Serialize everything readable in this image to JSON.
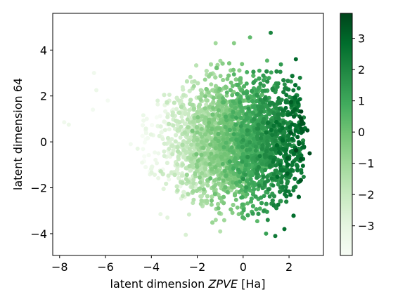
{
  "chart_data": {
    "type": "scatter",
    "title": "",
    "xlabel_prefix": "latent dimension ",
    "xlabel_var": "ZPVE",
    "xlabel_unit": " [Ha]",
    "ylabel": "latent dimension 64",
    "xlim": [
      -8.3,
      3.5
    ],
    "ylim": [
      -4.95,
      5.6
    ],
    "x_ticks": [
      {
        "value": -8,
        "label": "−8"
      },
      {
        "value": -6,
        "label": "−6"
      },
      {
        "value": -4,
        "label": "−4"
      },
      {
        "value": -2,
        "label": "−2"
      },
      {
        "value": 0,
        "label": "0"
      },
      {
        "value": 2,
        "label": "2"
      }
    ],
    "y_ticks": [
      {
        "value": -4,
        "label": "−4"
      },
      {
        "value": -2,
        "label": "−2"
      },
      {
        "value": 0,
        "label": "0"
      },
      {
        "value": 2,
        "label": "2"
      },
      {
        "value": 4,
        "label": "4"
      }
    ],
    "colorbar": {
      "colormap": "Greens",
      "range": [
        -3.95,
        3.8
      ],
      "ticks": [
        {
          "value": -3,
          "label": "−3"
        },
        {
          "value": -2,
          "label": "−2"
        },
        {
          "value": -1,
          "label": "−1"
        },
        {
          "value": 0,
          "label": "0"
        },
        {
          "value": 1,
          "label": "1"
        },
        {
          "value": 2,
          "label": "2"
        },
        {
          "value": 3,
          "label": "3"
        }
      ]
    },
    "grid": false,
    "legend": "none",
    "cloud": {
      "n_points": 6000,
      "x_center": -0.3,
      "x_spread": 1.7,
      "y_spread": 1.3,
      "right_edge_x": 2.7,
      "right_edge_y_halfwidth": 3.3,
      "left_tail_x": -4.4
    },
    "outliers": [
      {
        "x": -7.8,
        "y": 0.85,
        "c": -3.6
      },
      {
        "x": -7.6,
        "y": 0.75,
        "c": -3.4
      },
      {
        "x": -6.5,
        "y": 3.0,
        "c": -3.6
      },
      {
        "x": -6.4,
        "y": 2.25,
        "c": -3.4
      },
      {
        "x": -6.55,
        "y": 1.4,
        "c": -3.7
      },
      {
        "x": -5.9,
        "y": 1.8,
        "c": -3.8
      },
      {
        "x": -4.9,
        "y": -0.1,
        "c": -3.7
      },
      {
        "x": -4.6,
        "y": -0.3,
        "c": -3.2
      },
      {
        "x": -4.4,
        "y": -0.9,
        "c": -3.5
      },
      {
        "x": -4.2,
        "y": 1.0,
        "c": -3.6
      },
      {
        "x": -3.6,
        "y": -3.15,
        "c": -3.1
      },
      {
        "x": -3.3,
        "y": -3.3,
        "c": -2.9
      },
      {
        "x": -2.5,
        "y": -4.05,
        "c": -2.6
      },
      {
        "x": -1.0,
        "y": -3.9,
        "c": -1.6
      },
      {
        "x": 1.2,
        "y": 4.75,
        "c": 2.1
      },
      {
        "x": 0.3,
        "y": 4.55,
        "c": 0.3
      },
      {
        "x": -1.2,
        "y": 4.3,
        "c": -1.1
      },
      {
        "x": -0.4,
        "y": 4.3,
        "c": -0.5
      },
      {
        "x": 2.3,
        "y": 3.6,
        "c": 2.9
      },
      {
        "x": 1.8,
        "y": -3.8,
        "c": 2.7
      },
      {
        "x": 1.0,
        "y": -4.0,
        "c": 1.2
      },
      {
        "x": 1.4,
        "y": -4.1,
        "c": 2.4
      },
      {
        "x": 2.9,
        "y": -0.5,
        "c": 3.6
      },
      {
        "x": 2.8,
        "y": 0.5,
        "c": 3.4
      }
    ]
  }
}
